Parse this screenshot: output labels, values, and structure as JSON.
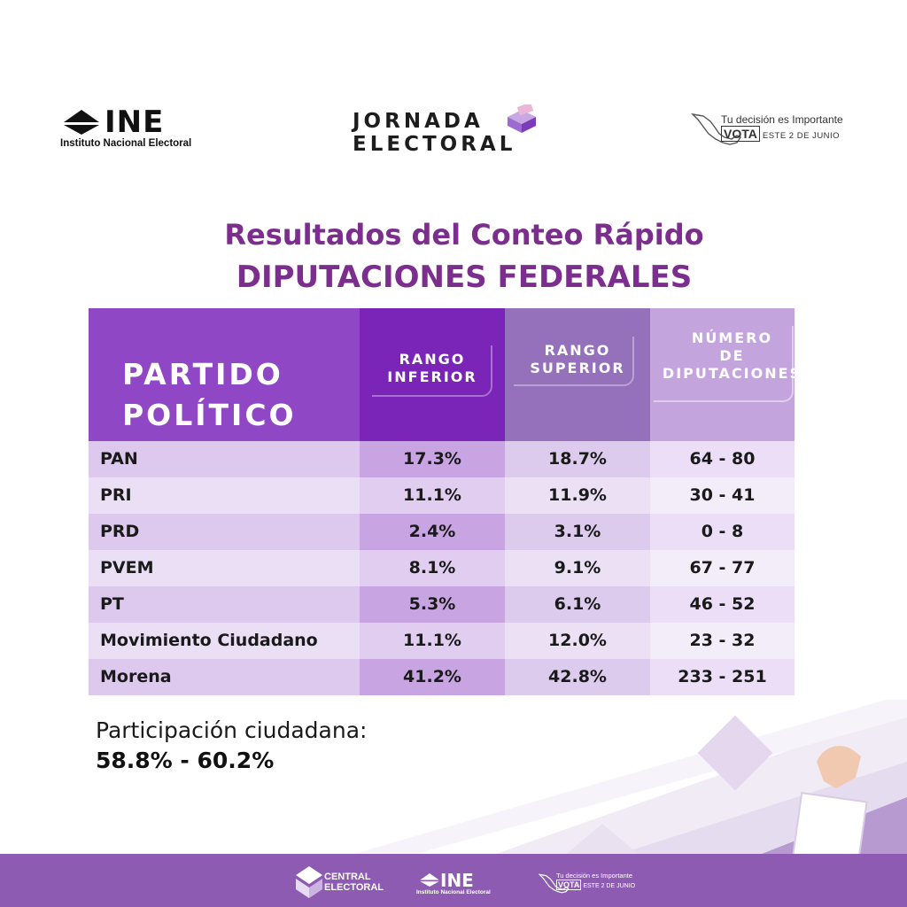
{
  "header": {
    "ine_logo": {
      "wordmark": "INE",
      "subtitle": "Instituto Nacional Electoral",
      "icon": "ine-ballot-icon"
    },
    "jornada_logo": {
      "line1": "JORNADA",
      "line2": "ELECTORAL",
      "icon": "ballot-box-icon"
    },
    "vota_logo": {
      "line1": "Tu decisión es Importante",
      "vota": "VOTA",
      "date": "ESTE 2 DE JUNIO",
      "icon": "mexico-map-icon"
    }
  },
  "title": {
    "line1": "Resultados del Conteo Rápido",
    "line2": "DIPUTACIONES FEDERALES"
  },
  "table": {
    "headers": {
      "party": "PARTIDO\nPOLÍTICO",
      "lower": "RANGO\nINFERIOR",
      "upper": "RANGO\nSUPERIOR",
      "seats": "NÚMERO\nDE\nDIPUTACIONES"
    },
    "rows": [
      {
        "party": "PAN",
        "lower": "17.3%",
        "upper": "18.7%",
        "seats": "64 - 80"
      },
      {
        "party": "PRI",
        "lower": "11.1%",
        "upper": "11.9%",
        "seats": "30 - 41"
      },
      {
        "party": "PRD",
        "lower": "2.4%",
        "upper": "3.1%",
        "seats": "0 - 8"
      },
      {
        "party": "PVEM",
        "lower": "8.1%",
        "upper": "9.1%",
        "seats": "67 - 77"
      },
      {
        "party": "PT",
        "lower": "5.3%",
        "upper": "6.1%",
        "seats": "46 - 52"
      },
      {
        "party": "Movimiento Ciudadano",
        "lower": "11.1%",
        "upper": "12.0%",
        "seats": "23 - 32"
      },
      {
        "party": "Morena",
        "lower": "41.2%",
        "upper": "42.8%",
        "seats": "233 - 251"
      }
    ]
  },
  "participation": {
    "label": "Participación ciudadana:",
    "value": "58.8% - 60.2%"
  },
  "footer": {
    "central_electoral": "CENTRAL\nELECTORAL",
    "ine_wordmark": "INE",
    "ine_subtitle": "Instituto Nacional Electoral",
    "vota_line1": "Tu decisión es Importante",
    "vota": "VOTA",
    "vota_date": "ESTE 2 DE JUNIO"
  },
  "colors": {
    "title_purple": "#7b2e8d",
    "header_party": "#9047c6",
    "header_lower": "#7a24b8",
    "header_upper": "#9570bb",
    "header_seats": "#c3a4dd",
    "footer_purple": "#8d5bb2"
  }
}
